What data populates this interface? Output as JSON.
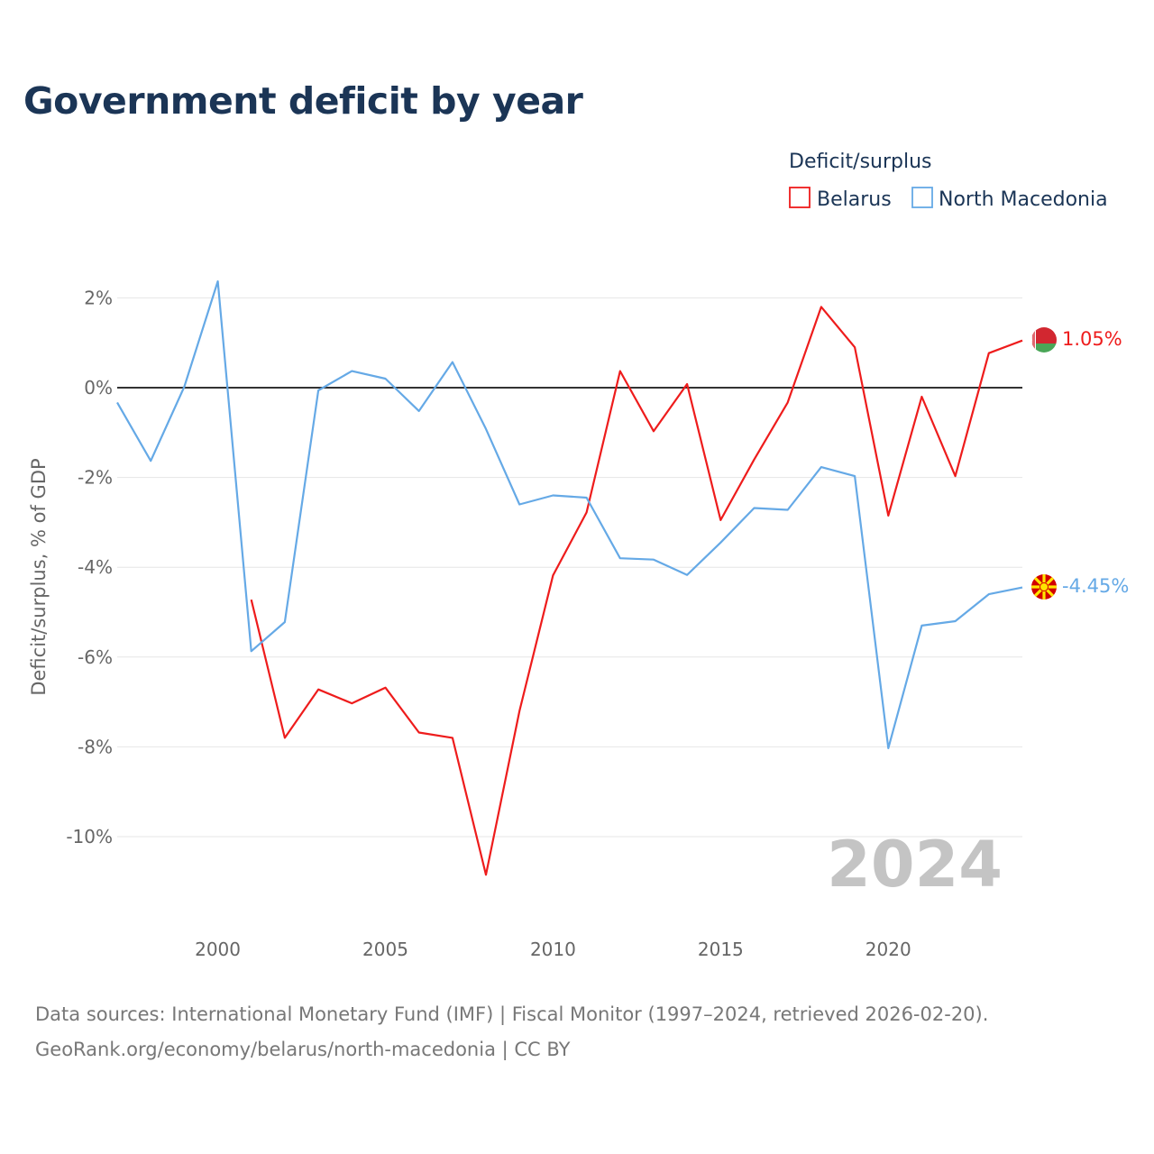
{
  "title": "Government deficit by year",
  "legend": {
    "title": "Deficit/surplus",
    "items": [
      {
        "label": "Belarus",
        "color": "#ee1c1c"
      },
      {
        "label": "North Macedonia",
        "color": "#65a9e6"
      }
    ]
  },
  "year_stamp": "2024",
  "footer": {
    "line1": "Data sources: International Monetary Fund (IMF) | Fiscal Monitor (1997–2024, retrieved 2026-02-20).",
    "line2": "GeoRank.org/economy/belarus/north-macedonia | CC BY"
  },
  "chart_data": {
    "type": "line",
    "title": "Government deficit by year",
    "xlabel": "",
    "ylabel": "Deficit/surplus, % of GDP",
    "xlim": [
      1997,
      2024
    ],
    "ylim": [
      -11.7,
      2.8
    ],
    "x_ticks": [
      2000,
      2005,
      2010,
      2015,
      2020
    ],
    "y_ticks": [
      2,
      0,
      -2,
      -4,
      -6,
      -8,
      -10
    ],
    "y_tick_labels": [
      "2%",
      "0%",
      "-2%",
      "-4%",
      "-6%",
      "-8%",
      "-10%"
    ],
    "zero_line": true,
    "grid": true,
    "series": [
      {
        "name": "Belarus",
        "color": "#ee1c1c",
        "end_label": "1.05%",
        "x": [
          2001,
          2002,
          2003,
          2004,
          2005,
          2006,
          2007,
          2008,
          2009,
          2010,
          2011,
          2012,
          2013,
          2014,
          2015,
          2016,
          2017,
          2018,
          2019,
          2020,
          2021,
          2022,
          2023,
          2024
        ],
        "values": [
          -4.72,
          -7.8,
          -6.72,
          -7.03,
          -6.68,
          -7.68,
          -7.8,
          -10.85,
          -7.2,
          -4.18,
          -2.78,
          0.37,
          -0.97,
          0.08,
          -2.95,
          -1.6,
          -0.33,
          1.8,
          0.9,
          -2.85,
          -0.2,
          -1.97,
          0.77,
          1.05
        ]
      },
      {
        "name": "North Macedonia",
        "color": "#65a9e6",
        "end_label": "-4.45%",
        "x": [
          1997,
          1998,
          1999,
          2000,
          2001,
          2002,
          2003,
          2004,
          2005,
          2006,
          2007,
          2008,
          2009,
          2010,
          2011,
          2012,
          2013,
          2014,
          2015,
          2016,
          2017,
          2018,
          2019,
          2020,
          2021,
          2022,
          2023,
          2024
        ],
        "values": [
          -0.33,
          -1.63,
          0.02,
          2.37,
          -5.87,
          -5.22,
          -0.06,
          0.37,
          0.2,
          -0.52,
          0.57,
          -0.92,
          -2.6,
          -2.4,
          -2.45,
          -3.8,
          -3.83,
          -4.17,
          -3.45,
          -2.68,
          -2.72,
          -1.77,
          -1.97,
          -8.03,
          -5.3,
          -5.2,
          -4.6,
          -4.45
        ]
      }
    ]
  }
}
